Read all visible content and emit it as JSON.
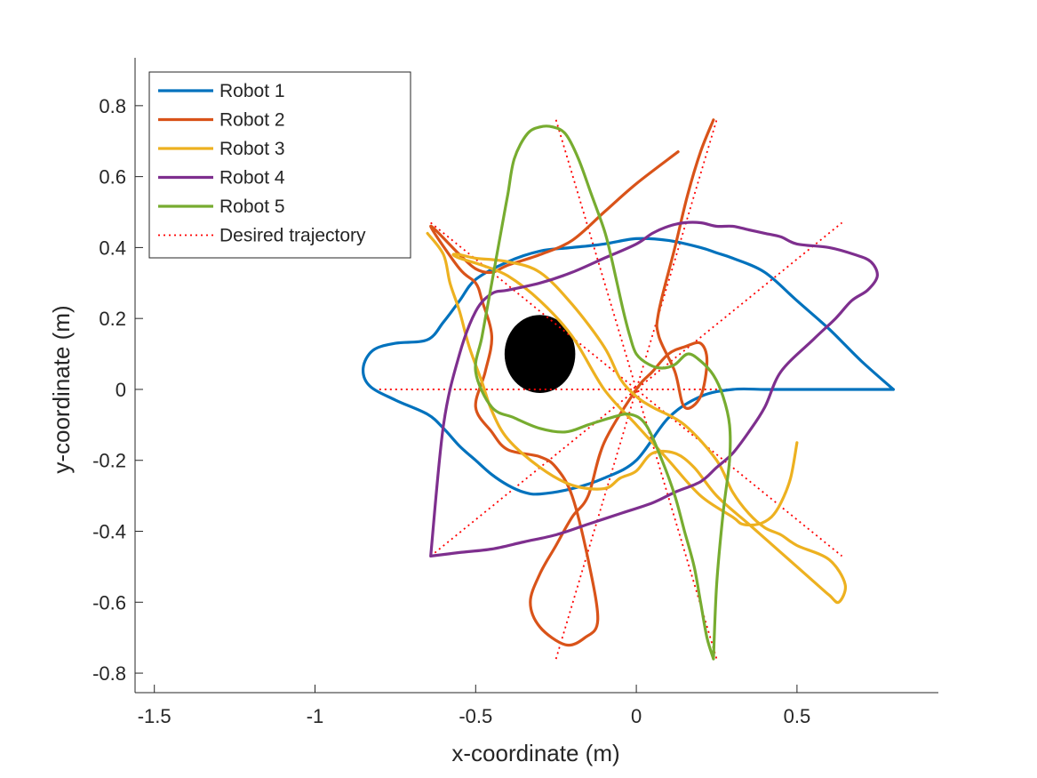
{
  "chart_data": {
    "type": "line",
    "xlabel": "x-coordinate (m)",
    "ylabel": "y-coordinate (m)",
    "xlim": [
      -1.56,
      0.94
    ],
    "ylim": [
      -0.855,
      0.935
    ],
    "xticks": [
      -1.5,
      -1,
      -0.5,
      0,
      0.5
    ],
    "xtick_labels": [
      "-1.5",
      "-1",
      "-0.5",
      "0",
      "0.5"
    ],
    "yticks": [
      -0.8,
      -0.6,
      -0.4,
      -0.2,
      0,
      0.2,
      0.4,
      0.6,
      0.8
    ],
    "ytick_labels": [
      "-0.8",
      "-0.6",
      "-0.4",
      "-0.2",
      "0",
      "0.2",
      "0.4",
      "0.6",
      "0.8"
    ],
    "grid": false,
    "legend_position": "top-left",
    "obstacle": {
      "center": [
        -0.3,
        0.1
      ],
      "rx": 0.11,
      "ry": 0.11,
      "color": "#000000"
    },
    "series": [
      {
        "name": "Robot 1",
        "color": "#0072BD",
        "style": "solid",
        "x": [
          0.8,
          0.7,
          0.6,
          0.5,
          0.4,
          0.3,
          0.25,
          0.2,
          0.1,
          0.0,
          -0.1,
          -0.2,
          -0.3,
          -0.4,
          -0.5,
          -0.55,
          -0.6,
          -0.65,
          -0.75,
          -0.82,
          -0.85,
          -0.83,
          -0.75,
          -0.65,
          -0.6,
          -0.55,
          -0.5,
          -0.45,
          -0.4,
          -0.35,
          -0.3,
          -0.2,
          -0.1,
          0.0,
          0.1,
          0.2,
          0.3,
          0.4,
          0.5,
          0.6,
          0.7,
          0.8
        ],
        "y": [
          0.0,
          0.08,
          0.17,
          0.25,
          0.33,
          0.37,
          0.385,
          0.4,
          0.42,
          0.425,
          0.41,
          0.4,
          0.39,
          0.36,
          0.31,
          0.25,
          0.19,
          0.14,
          0.13,
          0.11,
          0.06,
          0.01,
          -0.03,
          -0.07,
          -0.11,
          -0.16,
          -0.2,
          -0.24,
          -0.27,
          -0.29,
          -0.295,
          -0.28,
          -0.25,
          -0.2,
          -0.08,
          -0.02,
          0.0,
          0.0,
          0.0,
          0.0,
          0.0,
          0.0
        ]
      },
      {
        "name": "Robot 2",
        "color": "#D95319",
        "style": "solid",
        "x": [
          0.13,
          0.0,
          -0.1,
          -0.2,
          -0.3,
          -0.4,
          -0.45,
          -0.5,
          -0.55,
          -0.64,
          -0.55,
          -0.5,
          -0.48,
          -0.45,
          -0.47,
          -0.5,
          -0.45,
          -0.4,
          -0.3,
          -0.25,
          -0.2,
          -0.15,
          -0.12,
          -0.16,
          -0.22,
          -0.3,
          -0.33,
          -0.3,
          -0.25,
          -0.2,
          -0.15,
          -0.1,
          0.0,
          0.05,
          0.1,
          0.15,
          0.2,
          0.22,
          0.2,
          0.15,
          0.12,
          0.07,
          0.07,
          0.12,
          0.16,
          0.2,
          0.24
        ],
        "y": [
          0.67,
          0.58,
          0.5,
          0.42,
          0.38,
          0.35,
          0.33,
          0.34,
          0.38,
          0.46,
          0.34,
          0.3,
          0.25,
          0.15,
          0.05,
          -0.05,
          -0.12,
          -0.17,
          -0.19,
          -0.22,
          -0.3,
          -0.48,
          -0.65,
          -0.7,
          -0.72,
          -0.67,
          -0.6,
          -0.52,
          -0.44,
          -0.36,
          -0.3,
          -0.15,
          0.0,
          0.05,
          0.1,
          0.12,
          0.13,
          0.08,
          -0.02,
          -0.05,
          0.05,
          0.15,
          0.22,
          0.4,
          0.55,
          0.67,
          0.76
        ]
      },
      {
        "name": "Robot 3",
        "color": "#EDB120",
        "style": "solid",
        "x": [
          -0.65,
          -0.6,
          -0.58,
          -0.55,
          -0.52,
          -0.48,
          -0.45,
          -0.4,
          -0.3,
          -0.2,
          -0.1,
          -0.05,
          0.0,
          0.05,
          0.12,
          0.18,
          0.25,
          0.35,
          0.45,
          0.55,
          0.6,
          0.63,
          0.65,
          0.6,
          0.5,
          0.45,
          0.4,
          0.35,
          0.3,
          0.25,
          0.15,
          0.05,
          0.0,
          -0.05,
          -0.1,
          -0.2,
          -0.3,
          -0.4,
          -0.5,
          -0.55,
          -0.57,
          -0.55,
          -0.48,
          -0.4,
          -0.3,
          -0.2,
          -0.1,
          0.0,
          0.1,
          0.2,
          0.3,
          0.33,
          0.38,
          0.42,
          0.45,
          0.48,
          0.5
        ],
        "y": [
          0.44,
          0.38,
          0.3,
          0.22,
          0.12,
          0.02,
          -0.06,
          -0.14,
          -0.22,
          -0.27,
          -0.28,
          -0.25,
          -0.23,
          -0.18,
          -0.18,
          -0.22,
          -0.3,
          -0.38,
          -0.46,
          -0.54,
          -0.58,
          -0.6,
          -0.55,
          -0.48,
          -0.44,
          -0.41,
          -0.39,
          -0.35,
          -0.29,
          -0.2,
          -0.1,
          -0.05,
          -0.02,
          0.03,
          0.12,
          0.24,
          0.33,
          0.36,
          0.37,
          0.38,
          0.38,
          0.37,
          0.35,
          0.32,
          0.25,
          0.15,
          0.0,
          -0.1,
          -0.2,
          -0.3,
          -0.36,
          -0.38,
          -0.38,
          -0.36,
          -0.32,
          -0.25,
          -0.15
        ]
      },
      {
        "name": "Robot 4",
        "color": "#7E2F8E",
        "style": "solid",
        "x": [
          -0.64,
          -0.55,
          -0.45,
          -0.35,
          -0.25,
          -0.15,
          -0.05,
          0.05,
          0.12,
          0.2,
          0.25,
          0.3,
          0.35,
          0.4,
          0.45,
          0.55,
          0.62,
          0.67,
          0.72,
          0.75,
          0.73,
          0.68,
          0.6,
          0.5,
          0.45,
          0.4,
          0.35,
          0.3,
          0.25,
          0.2,
          0.15,
          0.1,
          0.05,
          0.0,
          -0.1,
          -0.2,
          -0.3,
          -0.4,
          -0.45,
          -0.5,
          -0.55,
          -0.6,
          -0.64
        ],
        "y": [
          -0.47,
          -0.46,
          -0.45,
          -0.43,
          -0.41,
          -0.38,
          -0.35,
          -0.32,
          -0.29,
          -0.26,
          -0.22,
          -0.18,
          -0.12,
          -0.05,
          0.05,
          0.14,
          0.2,
          0.25,
          0.28,
          0.32,
          0.36,
          0.38,
          0.4,
          0.41,
          0.43,
          0.44,
          0.45,
          0.46,
          0.46,
          0.47,
          0.47,
          0.46,
          0.44,
          0.41,
          0.37,
          0.33,
          0.3,
          0.28,
          0.27,
          0.22,
          0.1,
          -0.1,
          -0.47
        ]
      },
      {
        "name": "Robot 5",
        "color": "#77AC30",
        "style": "solid",
        "x": [
          0.24,
          0.22,
          0.2,
          0.18,
          0.15,
          0.12,
          0.08,
          0.03,
          -0.02,
          -0.08,
          -0.15,
          -0.22,
          -0.3,
          -0.38,
          -0.45,
          -0.5,
          -0.48,
          -0.45,
          -0.42,
          -0.4,
          -0.38,
          -0.34,
          -0.3,
          -0.26,
          -0.22,
          -0.18,
          -0.14,
          -0.1,
          -0.08,
          -0.06,
          -0.04,
          -0.02,
          0.0,
          0.04,
          0.08,
          0.12,
          0.16,
          0.2,
          0.24,
          0.27,
          0.29,
          0.29,
          0.27,
          0.25,
          0.24
        ],
        "y": [
          -0.76,
          -0.7,
          -0.6,
          -0.5,
          -0.4,
          -0.3,
          -0.2,
          -0.1,
          -0.07,
          -0.08,
          -0.1,
          -0.12,
          -0.11,
          -0.08,
          -0.05,
          0.05,
          0.15,
          0.3,
          0.45,
          0.55,
          0.65,
          0.72,
          0.74,
          0.74,
          0.72,
          0.65,
          0.55,
          0.45,
          0.38,
          0.3,
          0.22,
          0.15,
          0.1,
          0.07,
          0.06,
          0.07,
          0.1,
          0.08,
          0.04,
          -0.02,
          -0.1,
          -0.2,
          -0.35,
          -0.55,
          -0.76
        ]
      },
      {
        "name": "Desired trajectory",
        "color": "#FF0000",
        "style": "dotted",
        "segments": [
          {
            "x": [
              -0.8,
              0.8
            ],
            "y": [
              0.0,
              0.0
            ]
          },
          {
            "x": [
              -0.64,
              0.64
            ],
            "y": [
              0.47,
              -0.47
            ]
          },
          {
            "x": [
              -0.64,
              0.64
            ],
            "y": [
              -0.47,
              0.47
            ]
          },
          {
            "x": [
              -0.25,
              0.25
            ],
            "y": [
              0.76,
              -0.76
            ]
          },
          {
            "x": [
              -0.25,
              0.25
            ],
            "y": [
              -0.76,
              0.76
            ]
          }
        ]
      }
    ]
  }
}
